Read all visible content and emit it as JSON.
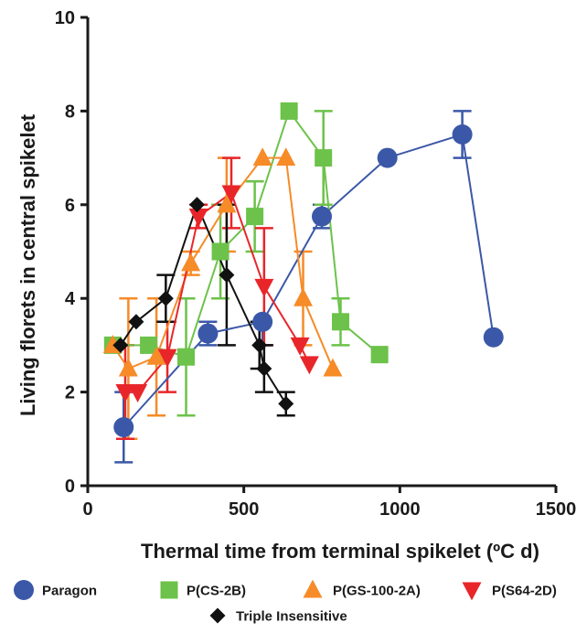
{
  "chart_data": {
    "type": "scatter",
    "xlabel": "Thermal time from terminal spikelet (ºC d)",
    "ylabel": "Living florets in central spikelet",
    "xlim": [
      0,
      1500
    ],
    "ylim": [
      0,
      10
    ],
    "x_ticks": [
      0,
      500,
      1000,
      1500
    ],
    "y_ticks": [
      0,
      2,
      4,
      6,
      8,
      10
    ],
    "grid": false,
    "legend_position": "bottom",
    "series": [
      {
        "name": "Paragon",
        "color": "#3b58a8",
        "marker": "circle",
        "points": [
          {
            "x": 115,
            "y": 1.25,
            "lo": 0.5,
            "hi": 2.0
          },
          {
            "x": 385,
            "y": 3.25,
            "lo": 3.0,
            "hi": 3.5
          },
          {
            "x": 560,
            "y": 3.5,
            "lo": 3.0,
            "hi": 3.5
          },
          {
            "x": 750,
            "y": 5.75,
            "lo": 5.5,
            "hi": 6.0
          },
          {
            "x": 960,
            "y": 7.0,
            "lo": 7.0,
            "hi": 7.0
          },
          {
            "x": 1200,
            "y": 7.5,
            "lo": 7.0,
            "hi": 8.0
          },
          {
            "x": 1300,
            "y": 3.17,
            "lo": 3.17,
            "hi": 3.17
          }
        ]
      },
      {
        "name": "P(CS-2B)",
        "color": "#6cc24a",
        "marker": "square",
        "points": [
          {
            "x": 80,
            "y": 3.0,
            "lo": 3.0,
            "hi": 3.0
          },
          {
            "x": 195,
            "y": 3.0,
            "lo": 3.0,
            "hi": 3.0
          },
          {
            "x": 315,
            "y": 2.75,
            "lo": 1.5,
            "hi": 4.0
          },
          {
            "x": 425,
            "y": 5.0,
            "lo": 4.0,
            "hi": 6.0
          },
          {
            "x": 535,
            "y": 5.75,
            "lo": 5.0,
            "hi": 6.5
          },
          {
            "x": 645,
            "y": 8.0,
            "lo": 8.0,
            "hi": 8.0
          },
          {
            "x": 755,
            "y": 7.0,
            "lo": 6.0,
            "hi": 8.0
          },
          {
            "x": 810,
            "y": 3.5,
            "lo": 3.0,
            "hi": 4.0
          },
          {
            "x": 935,
            "y": 2.8,
            "lo": 2.8,
            "hi": 2.8
          }
        ]
      },
      {
        "name": "P(GS-100-2A)",
        "color": "#f68b28",
        "marker": "triangle-up",
        "points": [
          {
            "x": 80,
            "y": 3.0,
            "lo": 3.0,
            "hi": 3.0
          },
          {
            "x": 130,
            "y": 2.5,
            "lo": 1.0,
            "hi": 4.0
          },
          {
            "x": 220,
            "y": 2.75,
            "lo": 1.5,
            "hi": 4.0
          },
          {
            "x": 330,
            "y": 4.75,
            "lo": 4.5,
            "hi": 5.0
          },
          {
            "x": 445,
            "y": 6.0,
            "lo": 5.0,
            "hi": 7.0
          },
          {
            "x": 560,
            "y": 7.0,
            "lo": 7.0,
            "hi": 7.0
          },
          {
            "x": 635,
            "y": 7.0,
            "lo": 7.0,
            "hi": 7.0
          },
          {
            "x": 690,
            "y": 4.0,
            "lo": 3.0,
            "hi": 5.0
          },
          {
            "x": 785,
            "y": 2.5,
            "lo": 2.5,
            "hi": 2.5
          }
        ]
      },
      {
        "name": "P(S64-2D)",
        "color": "#e8262a",
        "marker": "triangle-down",
        "points": [
          {
            "x": 120,
            "y": 2.0,
            "lo": 1.0,
            "hi": 3.0
          },
          {
            "x": 160,
            "y": 2.0,
            "lo": 2.0,
            "hi": 2.0
          },
          {
            "x": 255,
            "y": 2.75,
            "lo": 2.0,
            "hi": 3.5
          },
          {
            "x": 355,
            "y": 5.75,
            "lo": 5.5,
            "hi": 6.0
          },
          {
            "x": 460,
            "y": 6.25,
            "lo": 5.5,
            "hi": 7.0
          },
          {
            "x": 565,
            "y": 4.25,
            "lo": 3.0,
            "hi": 5.5
          },
          {
            "x": 680,
            "y": 3.0,
            "lo": 3.0,
            "hi": 3.0
          },
          {
            "x": 710,
            "y": 2.6,
            "lo": 2.6,
            "hi": 2.6
          }
        ]
      },
      {
        "name": "Triple Insensitive",
        "color": "#111111",
        "marker": "diamond",
        "points": [
          {
            "x": 105,
            "y": 3.0,
            "lo": 3.0,
            "hi": 3.0
          },
          {
            "x": 155,
            "y": 3.5,
            "lo": 3.5,
            "hi": 3.5
          },
          {
            "x": 250,
            "y": 4.0,
            "lo": 3.5,
            "hi": 4.5
          },
          {
            "x": 350,
            "y": 6.0,
            "lo": 6.0,
            "hi": 6.0
          },
          {
            "x": 445,
            "y": 4.5,
            "lo": 3.0,
            "hi": 6.0
          },
          {
            "x": 550,
            "y": 3.0,
            "lo": 2.5,
            "hi": 3.5
          },
          {
            "x": 565,
            "y": 2.5,
            "lo": 2.0,
            "hi": 3.0
          },
          {
            "x": 635,
            "y": 1.75,
            "lo": 1.5,
            "hi": 2.0
          }
        ]
      }
    ]
  }
}
